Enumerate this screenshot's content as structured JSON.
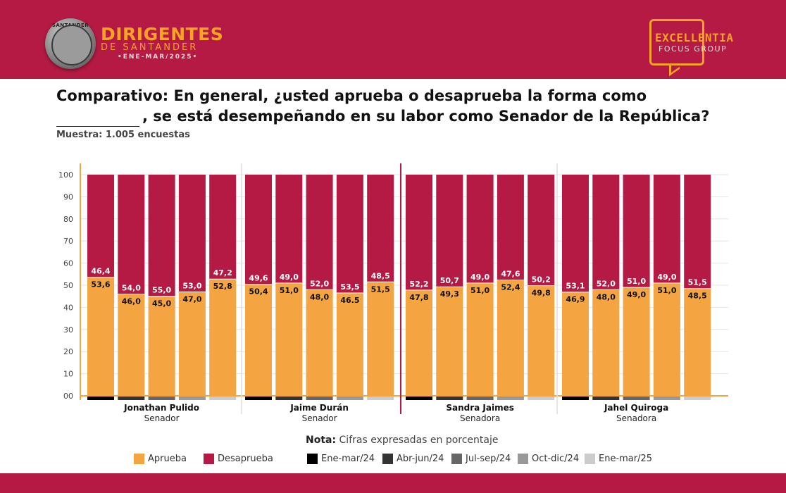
{
  "header": {
    "brand_title": "DIRIGENTES",
    "brand_subtitle": "DE SANTANDER",
    "brand_period": "•ENE-MAR/2025•",
    "seal_text": "SANTANDER",
    "logo_line1": "EXCELLENTIA",
    "logo_line2": "FOCUS GROUP",
    "colors": {
      "band": "#b41a43",
      "accent": "#f8a324"
    }
  },
  "question": {
    "line1": "Comparativo: En general, ¿usted aprueba o desaprueba la forma como",
    "line2": ", se está desempeñando en su labor como Senador de la República?"
  },
  "sample": "Muestra: 1.005 encuestas",
  "note": {
    "label": "Nota:",
    "text": "Cifras expresadas en porcentaje"
  },
  "legend": {
    "approve": {
      "label": "Aprueba",
      "color": "#f5a442"
    },
    "disapprove": {
      "label": "Desaprueba",
      "color": "#b41a43"
    },
    "periods": [
      {
        "label": "Ene-mar/24",
        "color": "#000000"
      },
      {
        "label": "Abr-jun/24",
        "color": "#333333"
      },
      {
        "label": "Jul-sep/24",
        "color": "#666666"
      },
      {
        "label": "Oct-dic/24",
        "color": "#999999"
      },
      {
        "label": "Ene-mar/25",
        "color": "#cccccc"
      }
    ]
  },
  "chart_data": {
    "type": "bar",
    "stacked": true,
    "ylim": [
      0,
      100
    ],
    "yticks": [
      "00",
      "10",
      "20",
      "30",
      "40",
      "50",
      "60",
      "70",
      "80",
      "90",
      "100"
    ],
    "groups": [
      {
        "name": "Jonathan Pulido",
        "role": "Senador",
        "approve": [
          53.6,
          46.0,
          45.0,
          47.0,
          52.8
        ],
        "approve_labels": [
          "53,6",
          "46,0",
          "45,0",
          "47,0",
          "52,8"
        ],
        "disapprove": [
          46.4,
          54.0,
          55.0,
          53.0,
          47.2
        ],
        "disapprove_labels": [
          "46,4",
          "54,0",
          "55,0",
          "53,0",
          "47,2"
        ]
      },
      {
        "name": "Jaime Durán",
        "role": "Senador",
        "approve": [
          50.4,
          51.0,
          48.0,
          46.5,
          51.5
        ],
        "approve_labels": [
          "50,4",
          "51,0",
          "48,0",
          "46.5",
          "51,5"
        ],
        "disapprove": [
          49.6,
          49.0,
          52.0,
          53.5,
          48.5
        ],
        "disapprove_labels": [
          "49,6",
          "49,0",
          "52,0",
          "53,5",
          "48,5"
        ]
      },
      {
        "name": "Sandra Jaimes",
        "role": "Senadora",
        "approve": [
          47.8,
          49.3,
          51.0,
          52.4,
          49.8
        ],
        "approve_labels": [
          "47,8",
          "49,3",
          "51,0",
          "52,4",
          "49,8"
        ],
        "disapprove": [
          52.2,
          50.7,
          49.0,
          47.6,
          50.2
        ],
        "disapprove_labels": [
          "52,2",
          "50,7",
          "49,0",
          "47,6",
          "50,2"
        ]
      },
      {
        "name": "Jahel Quiroga",
        "role": "Senadora",
        "approve": [
          46.9,
          48.0,
          49.0,
          51.0,
          48.5
        ],
        "approve_labels": [
          "46,9",
          "48,0",
          "49,0",
          "51,0",
          "48,5"
        ],
        "disapprove": [
          53.1,
          52.0,
          51.0,
          49.0,
          51.5
        ],
        "disapprove_labels": [
          "53,1",
          "52,0",
          "51,0",
          "49,0",
          "51,5"
        ]
      }
    ]
  }
}
